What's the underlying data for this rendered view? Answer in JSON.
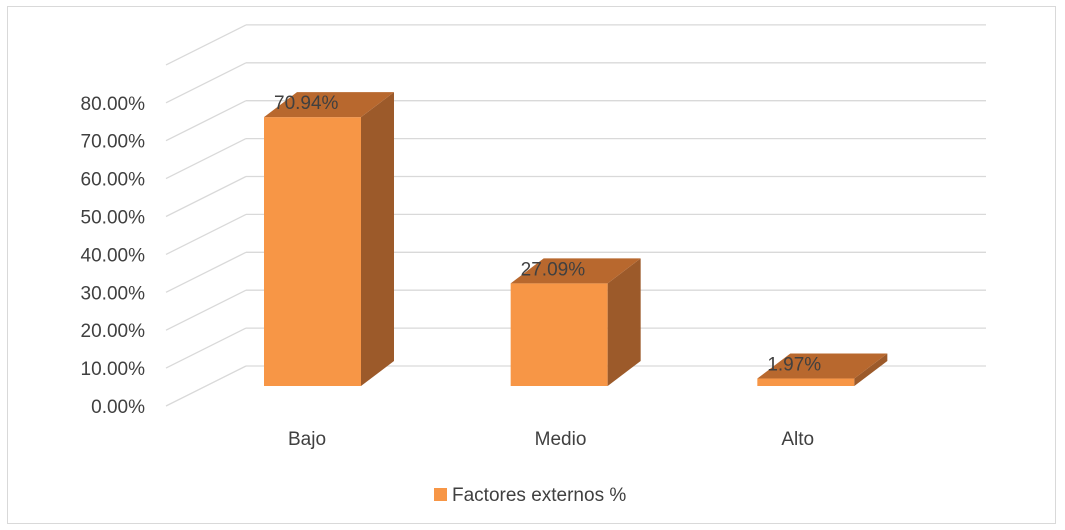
{
  "chart_data": {
    "type": "bar",
    "style": "3d-column",
    "categories": [
      "Bajo",
      "Medio",
      "Alto"
    ],
    "series": [
      {
        "name": "Factores externos %",
        "values": [
          70.94,
          27.09,
          1.97
        ],
        "labels": [
          "70.94%",
          "27.09%",
          "1.97%"
        ],
        "color": "#F79646",
        "side_color": "#9C5A2A",
        "top_color": "#B8682E"
      }
    ],
    "y_ticks": [
      "0.00%",
      "10.00%",
      "20.00%",
      "30.00%",
      "40.00%",
      "50.00%",
      "60.00%",
      "70.00%",
      "80.00%"
    ],
    "ylim": [
      0,
      90
    ],
    "grid": true,
    "gridline_color": "#d9d9d9",
    "legend": "bottom"
  }
}
